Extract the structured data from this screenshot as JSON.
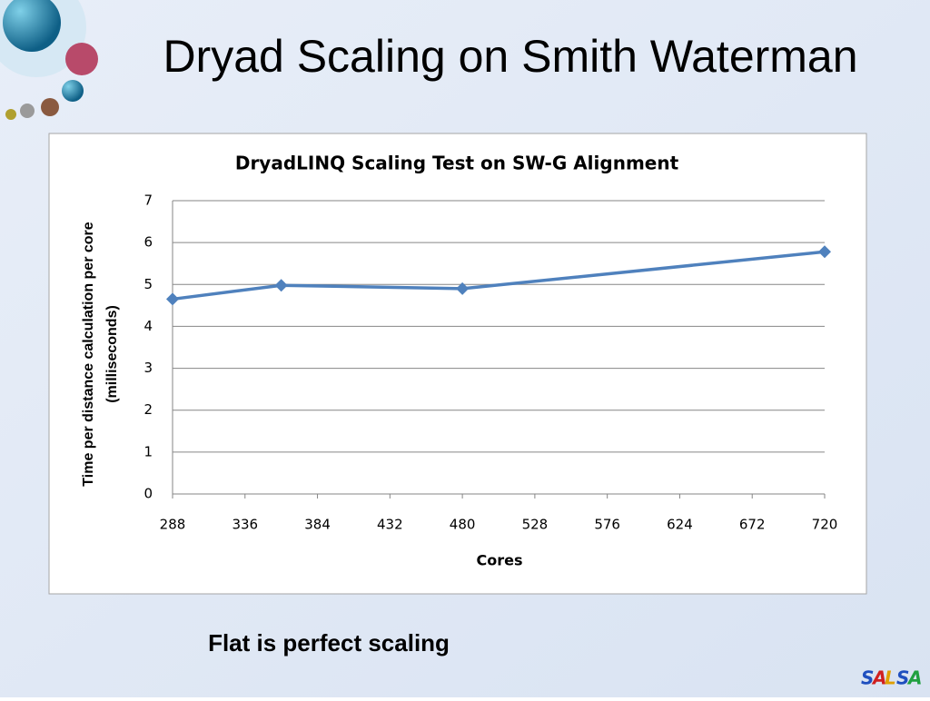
{
  "slide": {
    "title": "Dryad Scaling on Smith Waterman",
    "caption": "Flat is perfect scaling",
    "logo": [
      "S",
      "A",
      "L",
      "S",
      "A"
    ]
  },
  "chart_data": {
    "type": "line",
    "title": "DryadLINQ Scaling Test on SW-G Alignment",
    "x_label": "Cores",
    "y_label": [
      "Time per distance calculation per core",
      "(milliseconds)"
    ],
    "x": [
      288,
      360,
      480,
      720
    ],
    "series": [
      {
        "name": "Time per distance calculation",
        "color": "#4f81bd",
        "values": [
          4.65,
          4.98,
          4.9,
          5.78
        ]
      }
    ],
    "xlim": [
      288,
      720
    ],
    "xticks": [
      288,
      336,
      384,
      432,
      480,
      528,
      576,
      624,
      672,
      720
    ],
    "ylim": [
      0,
      7
    ],
    "yticks": [
      0,
      1,
      2,
      3,
      4,
      5,
      6,
      7
    ],
    "grid": true
  }
}
